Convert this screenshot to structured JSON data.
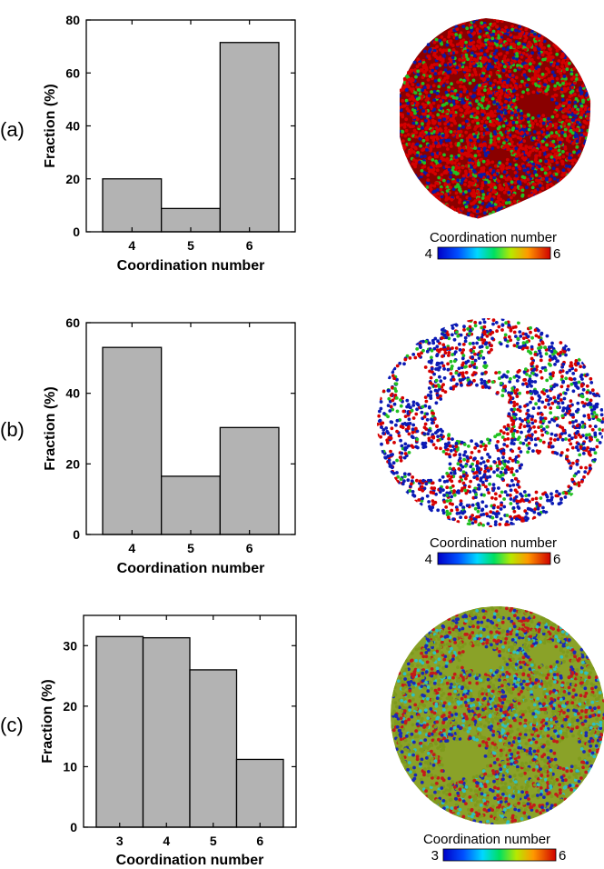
{
  "chart_data": [
    {
      "type": "bar",
      "panel_label": "(a)",
      "categories": [
        "4",
        "5",
        "6"
      ],
      "values": [
        20,
        8.8,
        71.5
      ],
      "title": "",
      "xlabel": "Coordination number",
      "ylabel": "Fraction (%)",
      "ylim": [
        0,
        80
      ],
      "yticks": [
        "0",
        "20",
        "40",
        "60",
        "80"
      ],
      "bar_color": "#b3b3b3",
      "grid": false,
      "structure": {
        "scheme": "mostly-6",
        "colorbar_title": "Coordination number",
        "colorbar_min": "4",
        "colorbar_max": "6"
      }
    },
    {
      "type": "bar",
      "panel_label": "(b)",
      "categories": [
        "4",
        "5",
        "6"
      ],
      "values": [
        53,
        16.5,
        30.3
      ],
      "title": "",
      "xlabel": "Coordination number",
      "ylabel": "Fraction (%)",
      "ylim": [
        0,
        60
      ],
      "yticks": [
        "0",
        "20",
        "40",
        "60"
      ],
      "bar_color": "#b3b3b3",
      "grid": false,
      "structure": {
        "scheme": "mixed-sparse",
        "colorbar_title": "Coordination number",
        "colorbar_min": "4",
        "colorbar_max": "6"
      }
    },
    {
      "type": "bar",
      "panel_label": "(c)",
      "categories": [
        "3",
        "4",
        "5",
        "6"
      ],
      "values": [
        31.5,
        31.3,
        26,
        11.2
      ],
      "title": "",
      "xlabel": "Coordination number",
      "ylabel": "Fraction (%)",
      "ylim": [
        0,
        35
      ],
      "yticks": [
        "0",
        "10",
        "20",
        "30"
      ],
      "bar_color": "#b3b3b3",
      "grid": false,
      "structure": {
        "scheme": "olive-mixed",
        "colorbar_title": "Coordination number",
        "colorbar_min": "3",
        "colorbar_max": "6"
      }
    }
  ]
}
